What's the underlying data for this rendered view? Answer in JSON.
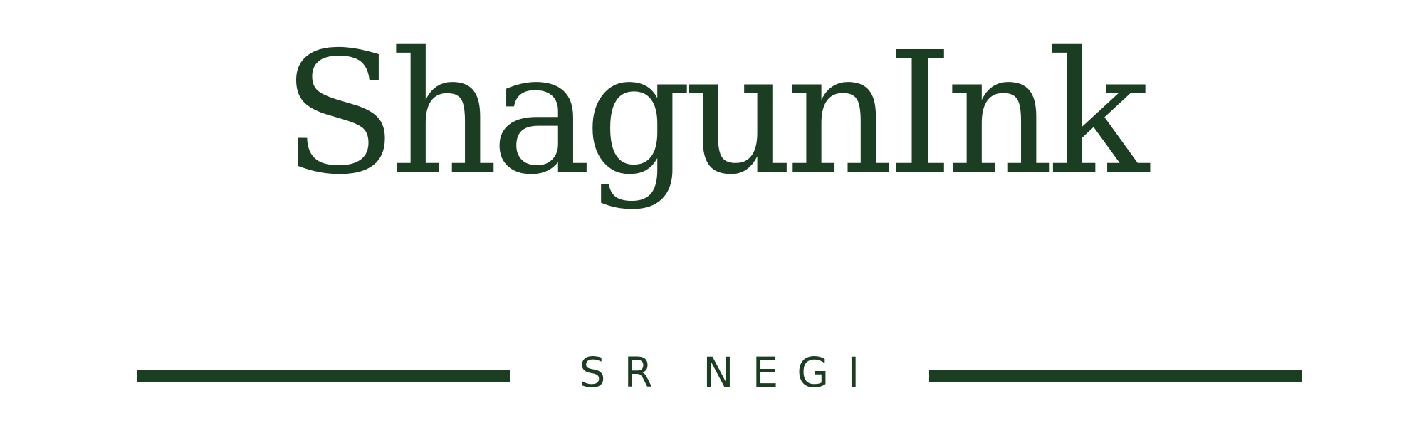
{
  "brand": {
    "name": "ShagunInk",
    "tagline": "SR NEGI",
    "color": "#1b3d22",
    "background": "#ffffff"
  }
}
